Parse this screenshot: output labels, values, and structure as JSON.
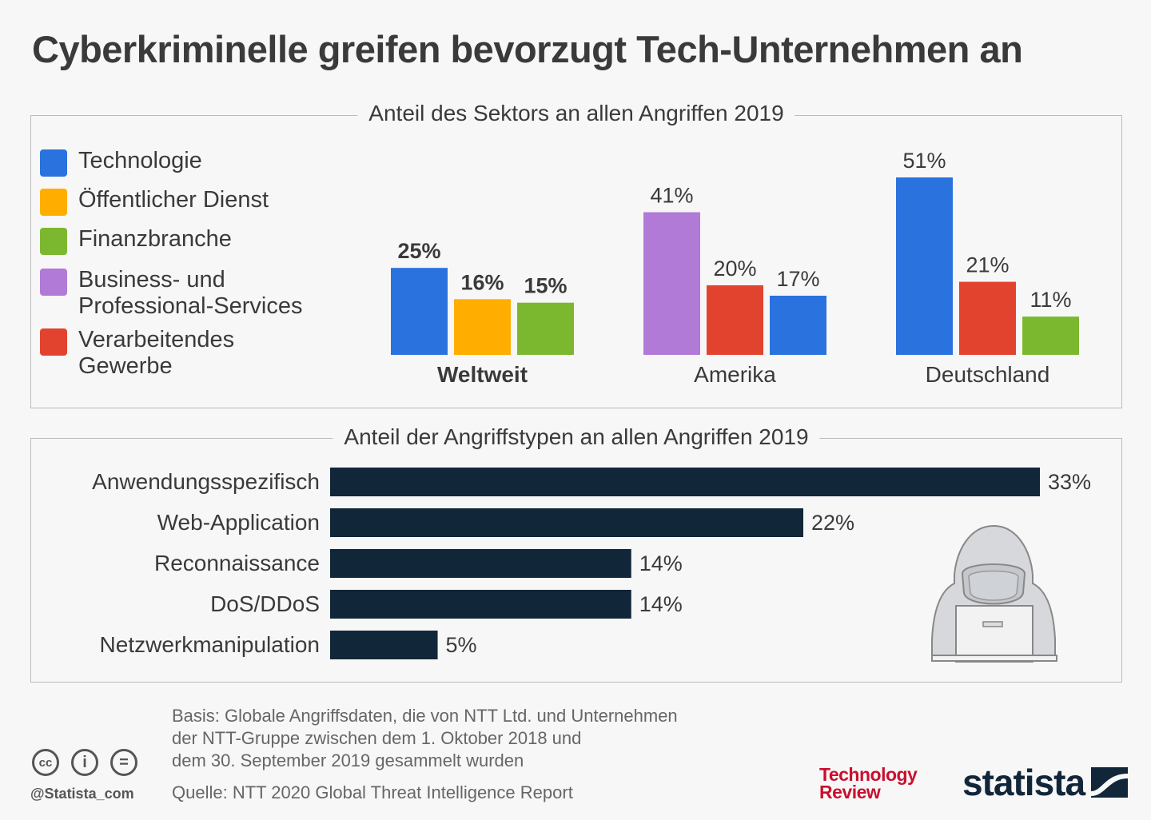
{
  "title": "Cyberkriminelle greifen bevorzugt Tech-Unternehmen an",
  "chart_data": [
    {
      "type": "bar",
      "title": "Anteil des Sektors an allen Angriffen 2019",
      "legend": [
        {
          "name": "Technologie",
          "color": "#2a72de"
        },
        {
          "name": "Öffentlicher Dienst",
          "color": "#ffae00"
        },
        {
          "name": "Finanzbranche",
          "color": "#7cb82f"
        },
        {
          "name": "Business- und Professional-Services",
          "color": "#b07ad6"
        },
        {
          "name": "Verarbeitendes Gewerbe",
          "color": "#e2432f"
        }
      ],
      "legend_position": "left",
      "groups": [
        {
          "category": "Weltweit",
          "bars": [
            {
              "sector": "Technologie",
              "value": 25,
              "label": "25%"
            },
            {
              "sector": "Öffentlicher Dienst",
              "value": 16,
              "label": "16%"
            },
            {
              "sector": "Finanzbranche",
              "value": 15,
              "label": "15%"
            }
          ]
        },
        {
          "category": "Amerika",
          "bars": [
            {
              "sector": "Business- und Professional-Services",
              "value": 41,
              "label": "41%"
            },
            {
              "sector": "Verarbeitendes Gewerbe",
              "value": 20,
              "label": "20%"
            },
            {
              "sector": "Technologie",
              "value": 17,
              "label": "17%"
            }
          ]
        },
        {
          "category": "Deutschland",
          "bars": [
            {
              "sector": "Technologie",
              "value": 51,
              "label": "51%"
            },
            {
              "sector": "Verarbeitendes Gewerbe",
              "value": 21,
              "label": "21%"
            },
            {
              "sector": "Finanzbranche",
              "value": 11,
              "label": "11%"
            }
          ]
        }
      ],
      "unit": "%",
      "ylim": [
        0,
        51
      ]
    },
    {
      "type": "bar",
      "orientation": "horizontal",
      "title": "Anteil der Angriffstypen an allen Angriffen 2019",
      "categories": [
        "Anwendungsspezifisch",
        "Web-Application",
        "Reconnaissance",
        "DoS/DDoS",
        "Netzwerkmanipulation"
      ],
      "values": [
        33,
        22,
        14,
        14,
        5
      ],
      "labels": [
        "33%",
        "22%",
        "14%",
        "14%",
        "5%"
      ],
      "color": "#12263a",
      "xlim": [
        0,
        33
      ]
    }
  ],
  "footer": {
    "basis_lines": [
      "Basis: Globale Angriffsdaten, die von NTT Ltd. und Unternehmen",
      "der NTT-Gruppe zwischen dem 1. Oktober 2018 und",
      "dem 30. September 2019 gesammelt wurden"
    ],
    "source": "Quelle: NTT 2020 Global Threat Intelligence Report",
    "handle": "@Statista_com",
    "cc_icons": [
      "cc",
      "i",
      "="
    ],
    "logo_tr_line1": "Technology",
    "logo_tr_line2": "Review",
    "logo_statista": "statista"
  }
}
